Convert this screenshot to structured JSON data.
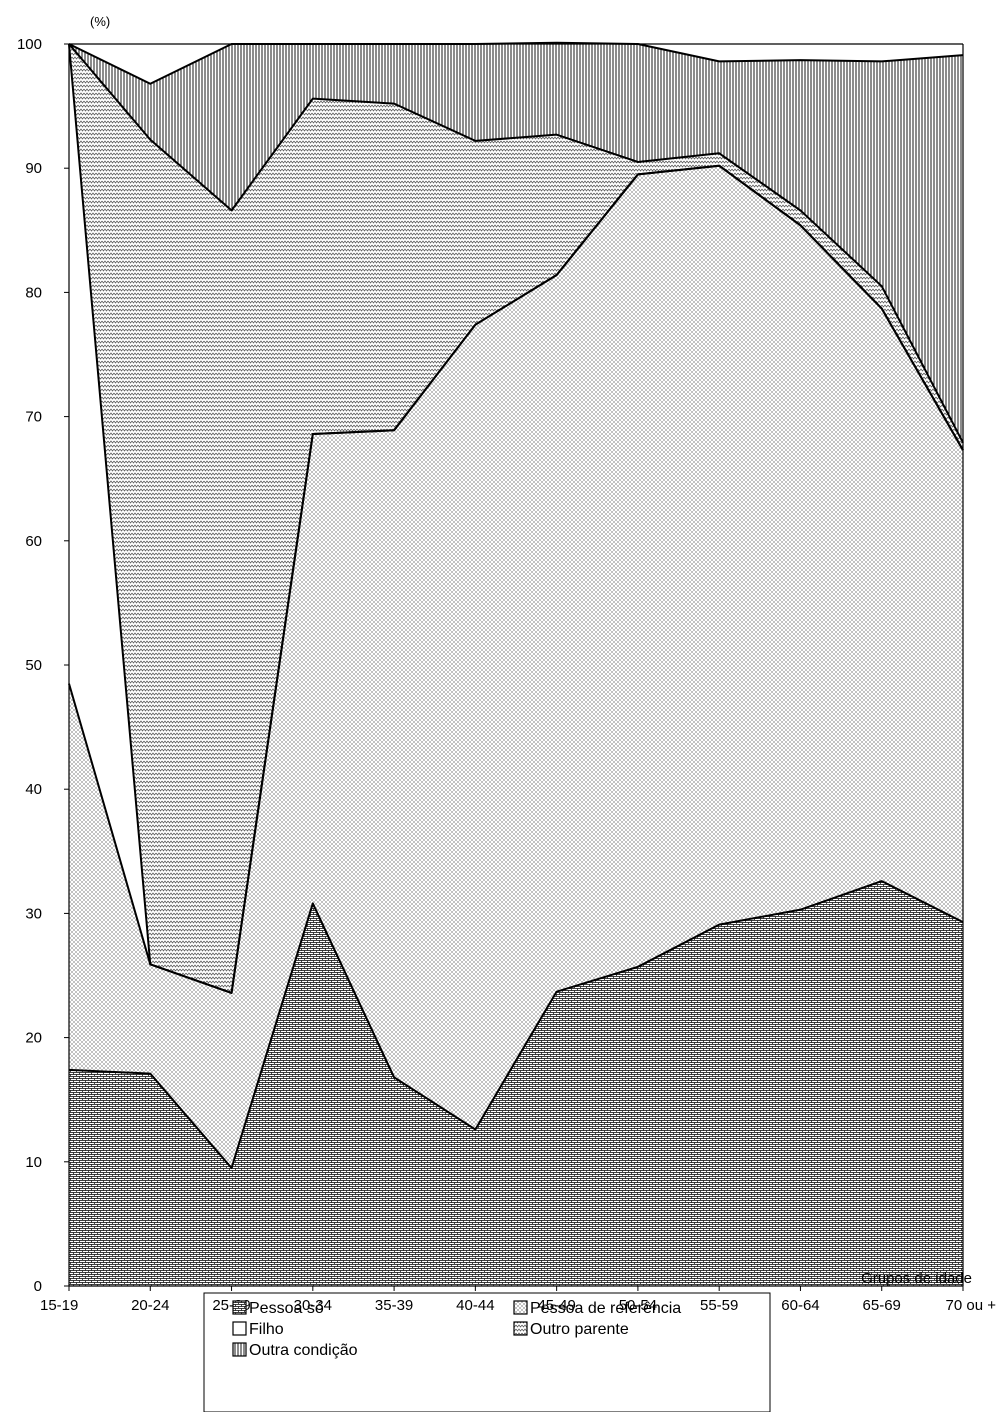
{
  "chart_data": {
    "type": "area",
    "stacked": true,
    "unit_label": "(%)",
    "xlabel": "Grupos de idade",
    "ylabel": "",
    "ylim": [
      0,
      100
    ],
    "yticks": [
      0,
      10,
      20,
      30,
      40,
      50,
      60,
      70,
      80,
      90,
      100
    ],
    "grid": false,
    "legend_position": "bottom",
    "categories": [
      "15-19",
      "20-24",
      "25-29",
      "30-34",
      "35-39",
      "40-44",
      "45-49",
      "50-54",
      "55-59",
      "60-64",
      "65-69",
      "70 ou +"
    ],
    "series": [
      {
        "name": "Pessoa só",
        "pattern": "brick",
        "values": [
          17.4,
          17.1,
          9.5,
          30.8,
          16.8,
          12.6,
          23.7,
          25.7,
          29.1,
          30.3,
          32.6,
          29.3
        ]
      },
      {
        "name": "Pessoa de referência",
        "pattern": "fine-dots",
        "values": [
          31.1,
          8.8,
          14.1,
          37.8,
          52.1,
          64.8,
          57.7,
          63.8,
          61.1,
          55.1,
          46.1,
          38.0
        ]
      },
      {
        "name": "Filho",
        "pattern": "blank",
        "values": [
          51.5,
          0.0,
          0.0,
          0.0,
          0.0,
          0.0,
          0.0,
          0.0,
          0.0,
          0.0,
          0.0,
          0.0
        ]
      },
      {
        "name": "Outro parente",
        "pattern": "zigzag",
        "values": [
          0.0,
          66.4,
          63.0,
          27.0,
          26.3,
          14.8,
          11.3,
          1.0,
          1.0,
          1.2,
          1.8,
          0.6
        ]
      },
      {
        "name": "Outra condição",
        "pattern": "vertical-lines",
        "values": [
          0.0,
          4.5,
          13.4,
          4.4,
          4.8,
          7.8,
          7.4,
          9.5,
          7.4,
          12.1,
          18.1,
          31.2
        ]
      }
    ],
    "extra_series_note_omitted": false
  },
  "legend": {
    "items": [
      {
        "label": "Pessoa só",
        "pattern": "brick"
      },
      {
        "label": "Pessoa de referência",
        "pattern": "fine-dots"
      },
      {
        "label": "Filho",
        "pattern": "blank"
      },
      {
        "label": "Outro parente",
        "pattern": "zigzag"
      },
      {
        "label": "Outra condição",
        "pattern": "vertical-lines"
      }
    ]
  }
}
